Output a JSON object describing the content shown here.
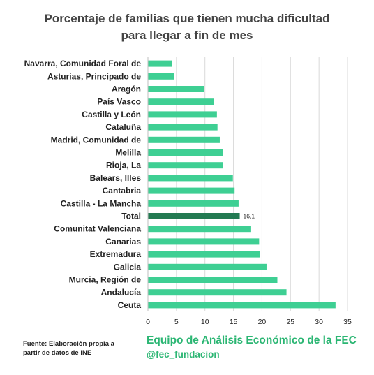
{
  "colors": {
    "bar": "#3ecf93",
    "highlight_bar": "#237a52",
    "grid": "#d9d9d9",
    "axis_text": "#222222",
    "title_text": "#444444",
    "brand": "#2bb673"
  },
  "chart_data": {
    "type": "bar",
    "orientation": "horizontal",
    "title": "Porcentaje de familias que tienen mucha dificultad para llegar a fin de mes",
    "title_lines": [
      "Porcentaje de familias que tienen mucha dificultad",
      "para llegar a fin de mes"
    ],
    "categories": [
      "Navarra, Comunidad Foral de",
      "Asturias, Principado de",
      "Aragón",
      "País Vasco",
      "Castilla y León",
      "Cataluña",
      "Madrid, Comunidad de",
      "Melilla",
      "Rioja, La",
      "Balears, Illes",
      "Cantabria",
      "Castilla - La Mancha",
      "Total",
      "Comunitat Valenciana",
      "Canarias",
      "Extremadura",
      "Galicia",
      "Murcia, Región de",
      "Andalucía",
      "Ceuta"
    ],
    "values": [
      4.2,
      4.6,
      9.9,
      11.6,
      12.1,
      12.2,
      12.6,
      13.1,
      13.1,
      14.9,
      15.2,
      15.9,
      16.1,
      18.1,
      19.5,
      19.6,
      20.8,
      22.7,
      24.3,
      32.9
    ],
    "highlight_category": "Total",
    "data_labels": [
      {
        "category": "Total",
        "text": "16,1"
      }
    ],
    "xlim": [
      0,
      35
    ],
    "xticks": [
      0,
      5,
      10,
      15,
      20,
      25,
      30,
      35
    ],
    "grid": true,
    "xlabel": "",
    "ylabel": ""
  },
  "footer": {
    "source_line1": "Fuente: Elaboración propia a",
    "source_line2": "partir de datos de INE",
    "brand": "Equipo de Análisis Económico de la FEC",
    "handle": "@fec_fundacion"
  }
}
